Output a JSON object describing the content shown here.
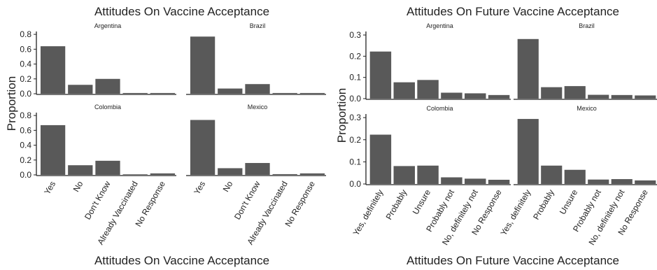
{
  "chart_data": [
    {
      "type": "bar",
      "title": "Attitudes On Vaccine Acceptance",
      "xlabel": "Attitudes On Vaccine Acceptance",
      "ylabel": "Proportion",
      "ylim": [
        0,
        0.82
      ],
      "yticks": [
        "0.0",
        "0.2",
        "0.4",
        "0.6",
        "0.8"
      ],
      "yticks_values": [
        0,
        0.2,
        0.4,
        0.6,
        0.8
      ],
      "grid": false,
      "categories": [
        "Yes",
        "No",
        "Don't Know",
        "Already Vaccinated",
        "No Response"
      ],
      "facets": [
        {
          "name": "Argentina",
          "values": [
            0.64,
            0.12,
            0.2,
            0.01,
            0.01
          ]
        },
        {
          "name": "Brazil",
          "values": [
            0.77,
            0.07,
            0.13,
            0.01,
            0.01
          ]
        },
        {
          "name": "Colombia",
          "values": [
            0.67,
            0.13,
            0.19,
            0.004,
            0.02
          ]
        },
        {
          "name": "Mexico",
          "values": [
            0.74,
            0.09,
            0.16,
            0.01,
            0.02
          ]
        }
      ]
    },
    {
      "type": "bar",
      "title": "Attitudes On Future Vaccine Acceptance",
      "xlabel": "Attitudes On Future Vaccine Acceptance",
      "ylabel": "Proportion",
      "ylim": [
        0,
        0.31
      ],
      "yticks": [
        "0.0",
        "0.1",
        "0.2",
        "0.3"
      ],
      "yticks_values": [
        0,
        0.1,
        0.2,
        0.3
      ],
      "grid": false,
      "categories": [
        "Yes, definitely",
        "Probably",
        "Unsure",
        "Probably not",
        "No, definitely not",
        "No Response"
      ],
      "facets": [
        {
          "name": "Argentina",
          "values": [
            0.222,
            0.077,
            0.088,
            0.028,
            0.025,
            0.017
          ]
        },
        {
          "name": "Brazil",
          "values": [
            0.281,
            0.054,
            0.059,
            0.018,
            0.017,
            0.015
          ]
        },
        {
          "name": "Colombia",
          "values": [
            0.223,
            0.081,
            0.083,
            0.03,
            0.024,
            0.019
          ]
        },
        {
          "name": "Mexico",
          "values": [
            0.294,
            0.083,
            0.064,
            0.02,
            0.022,
            0.016
          ]
        }
      ]
    }
  ]
}
